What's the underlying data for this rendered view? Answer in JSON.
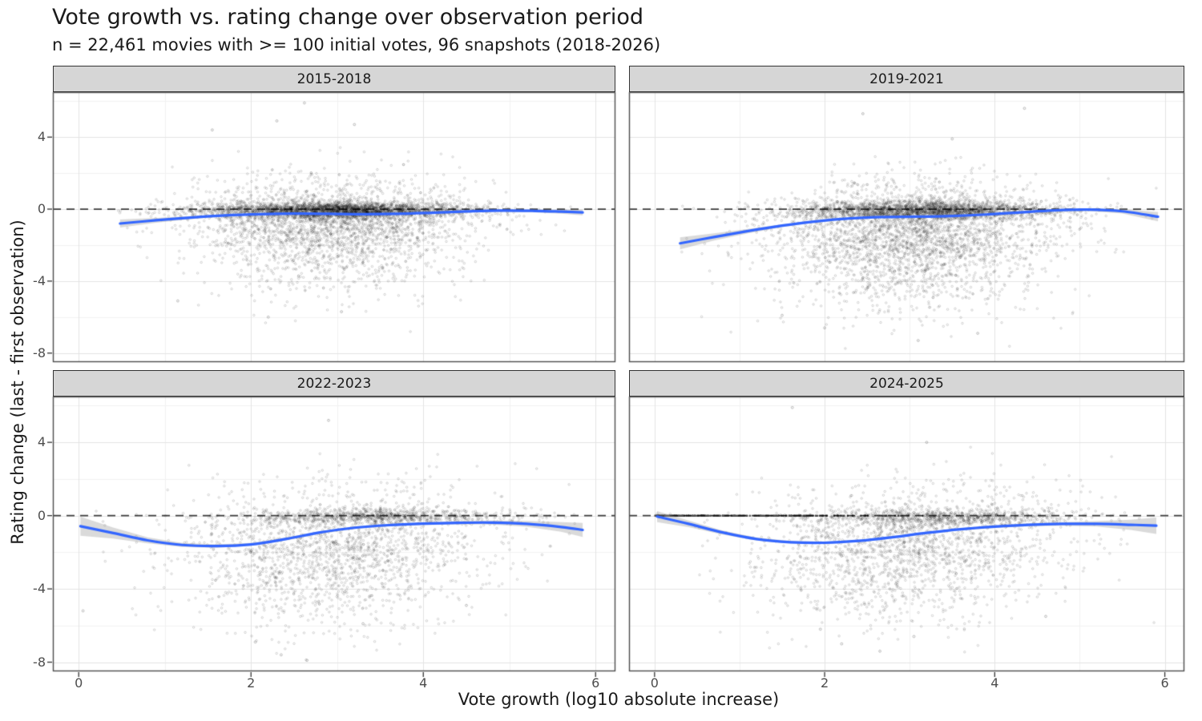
{
  "chart_data": {
    "type": "scatter",
    "title": "Vote growth vs. rating change over observation period",
    "subtitle": "n = 22,461 movies with >= 100 initial votes, 96 snapshots (2018-2026)",
    "xlabel": "Vote growth (log10 absolute increase)",
    "ylabel": "Rating change (last - first observation)",
    "legend": "none",
    "grid": "on",
    "x_axis": {
      "domain": [
        -0.3,
        6.23
      ],
      "major_ticks": [
        0,
        2,
        4,
        6
      ],
      "minor_ticks": [
        1,
        3,
        5
      ],
      "tick_labels": [
        "0",
        "2",
        "4",
        "6"
      ]
    },
    "y_axis": {
      "domain": [
        -8.5,
        6.5
      ],
      "major_ticks": [
        4,
        0,
        -4,
        -8
      ],
      "minor_ticks": [
        6,
        2,
        -2,
        -6
      ],
      "tick_labels": [
        "4",
        "0",
        "-4",
        "-8"
      ]
    },
    "zero_line_y": 0,
    "style": {
      "smooth_line": "#3366FF",
      "ci_band": "#969696",
      "ci_alpha": 0.35,
      "point": "#000000",
      "point_alpha": 0.22,
      "zero_line": "#3C3C3C",
      "grid_major": "#E4E4E4",
      "grid_minor": "#F2F2F2",
      "panel_border": "#4D4D4D",
      "tick_mark": "#333333",
      "strip_fill": "#D6D6D6",
      "strip_border": "#333333",
      "background": "#FFFFFF"
    },
    "facets": [
      {
        "label": "2015-2018",
        "smooth": {
          "x": [
            0.48,
            0.9,
            1.3,
            1.7,
            2.1,
            2.5,
            2.9,
            3.3,
            3.7,
            4.1,
            4.5,
            4.9,
            5.3,
            5.6,
            5.85
          ],
          "y": [
            -0.8,
            -0.62,
            -0.47,
            -0.35,
            -0.28,
            -0.25,
            -0.26,
            -0.28,
            -0.26,
            -0.2,
            -0.13,
            -0.08,
            -0.1,
            -0.14,
            -0.18
          ],
          "ci": [
            0.22,
            0.13,
            0.08,
            0.05,
            0.04,
            0.03,
            0.03,
            0.03,
            0.03,
            0.04,
            0.05,
            0.06,
            0.08,
            0.11,
            0.16
          ]
        },
        "scatter_model": {
          "seed": 101,
          "x_range": [
            0.45,
            5.9
          ],
          "y_range": [
            -7.6,
            6.2
          ],
          "components": [
            {
              "n": 2600,
              "x": [
                3.0,
                0.82
              ],
              "y": [
                -0.07,
                0.22
              ]
            },
            {
              "n": 1500,
              "x": [
                2.95,
                0.8
              ],
              "y": [
                -0.85,
                0.85
              ]
            },
            {
              "n": 650,
              "x": [
                2.9,
                0.75
              ],
              "y": [
                -2.5,
                1.25
              ]
            },
            {
              "n": 420,
              "x": [
                2.85,
                0.8
              ],
              "y": [
                0.6,
                1.05
              ]
            }
          ]
        },
        "outliers": [
          [
            2.62,
            5.9
          ],
          [
            3.2,
            4.7
          ],
          [
            1.55,
            4.4
          ],
          [
            2.3,
            4.9
          ],
          [
            2.2,
            -6.0
          ],
          [
            3.05,
            -5.7
          ],
          [
            1.15,
            -5.1
          ]
        ]
      },
      {
        "label": "2019-2021",
        "smooth": {
          "x": [
            0.3,
            0.7,
            1.1,
            1.5,
            1.9,
            2.3,
            2.7,
            3.1,
            3.5,
            3.9,
            4.3,
            4.7,
            5.1,
            5.5,
            5.92
          ],
          "y": [
            -1.9,
            -1.55,
            -1.22,
            -0.92,
            -0.68,
            -0.52,
            -0.44,
            -0.42,
            -0.38,
            -0.3,
            -0.18,
            -0.07,
            -0.03,
            -0.12,
            -0.42
          ],
          "ci": [
            0.33,
            0.2,
            0.12,
            0.08,
            0.06,
            0.05,
            0.04,
            0.04,
            0.04,
            0.05,
            0.05,
            0.06,
            0.08,
            0.12,
            0.26
          ]
        },
        "scatter_model": {
          "seed": 202,
          "x_range": [
            0.2,
            5.95
          ],
          "y_range": [
            -7.8,
            6.3
          ],
          "components": [
            {
              "n": 2100,
              "x": [
                3.2,
                0.8
              ],
              "y": [
                -0.08,
                0.25
              ]
            },
            {
              "n": 1600,
              "x": [
                3.0,
                0.85
              ],
              "y": [
                -1.3,
                1.0
              ]
            },
            {
              "n": 850,
              "x": [
                2.95,
                0.8
              ],
              "y": [
                -3.3,
                1.35
              ]
            },
            {
              "n": 420,
              "x": [
                3.2,
                0.8
              ],
              "y": [
                0.55,
                0.85
              ]
            }
          ]
        },
        "outliers": [
          [
            2.45,
            5.3
          ],
          [
            4.35,
            5.6
          ],
          [
            3.5,
            3.9
          ],
          [
            2.0,
            -6.6
          ],
          [
            3.1,
            -7.3
          ],
          [
            1.5,
            -5.9
          ],
          [
            3.8,
            -6.9
          ]
        ]
      },
      {
        "label": "2022-2023",
        "smooth": {
          "x": [
            0.02,
            0.4,
            0.8,
            1.2,
            1.6,
            2.0,
            2.4,
            2.8,
            3.2,
            3.6,
            4.0,
            4.4,
            4.8,
            5.2,
            5.6,
            5.85
          ],
          "y": [
            -0.58,
            -0.95,
            -1.35,
            -1.6,
            -1.66,
            -1.57,
            -1.28,
            -0.92,
            -0.66,
            -0.52,
            -0.44,
            -0.39,
            -0.38,
            -0.45,
            -0.62,
            -0.78
          ],
          "ci": [
            0.52,
            0.3,
            0.16,
            0.11,
            0.09,
            0.08,
            0.08,
            0.07,
            0.07,
            0.07,
            0.08,
            0.09,
            0.11,
            0.16,
            0.26,
            0.38
          ]
        },
        "scatter_model": {
          "seed": 303,
          "x_range": [
            0.0,
            5.9
          ],
          "y_range": [
            -8.2,
            6.3
          ],
          "components": [
            {
              "n": 900,
              "x": [
                3.5,
                0.82
              ],
              "y": [
                -0.07,
                0.22
              ]
            },
            {
              "n": 950,
              "x": [
                2.95,
                0.92
              ],
              "y": [
                -1.6,
                1.05
              ]
            },
            {
              "n": 680,
              "x": [
                2.8,
                0.88
              ],
              "y": [
                -3.6,
                1.5
              ]
            },
            {
              "n": 210,
              "x": [
                3.3,
                0.85
              ],
              "y": [
                0.8,
                1.0
              ]
            }
          ]
        },
        "outliers": [
          [
            2.9,
            5.2
          ],
          [
            0.05,
            -5.2
          ],
          [
            2.35,
            -7.6
          ],
          [
            2.05,
            -6.9
          ],
          [
            3.3,
            -5.9
          ],
          [
            2.65,
            -7.9
          ],
          [
            4.5,
            -4.9
          ]
        ]
      },
      {
        "label": "2024-2025",
        "smooth": {
          "x": [
            0.03,
            0.4,
            0.8,
            1.2,
            1.6,
            2.0,
            2.4,
            2.8,
            3.2,
            3.6,
            4.0,
            4.4,
            4.8,
            5.2,
            5.6,
            5.9
          ],
          "y": [
            -0.05,
            -0.45,
            -0.92,
            -1.28,
            -1.45,
            -1.48,
            -1.38,
            -1.18,
            -0.94,
            -0.74,
            -0.6,
            -0.5,
            -0.45,
            -0.45,
            -0.5,
            -0.55
          ],
          "ci": [
            0.3,
            0.18,
            0.11,
            0.08,
            0.07,
            0.06,
            0.06,
            0.06,
            0.06,
            0.06,
            0.07,
            0.08,
            0.1,
            0.15,
            0.28,
            0.45
          ]
        },
        "scatter_model": {
          "seed": 404,
          "x_range": [
            0.0,
            5.95
          ],
          "y_range": [
            -8.2,
            6.3
          ],
          "components": [
            {
              "n": 260,
              "dist": "halfnormal_x",
              "x": [
                0,
                1.25
              ],
              "x_range": [
                0,
                3.3
              ],
              "y_fixed": 0,
              "point_alpha": 0.7,
              "filled": true
            },
            {
              "n": 820,
              "x": [
                3.4,
                0.85
              ],
              "y": [
                -0.1,
                0.25
              ]
            },
            {
              "n": 950,
              "x": [
                2.95,
                0.9
              ],
              "y": [
                -1.5,
                1.05
              ]
            },
            {
              "n": 640,
              "x": [
                2.85,
                0.85
              ],
              "y": [
                -3.4,
                1.45
              ]
            },
            {
              "n": 260,
              "x": [
                3.4,
                0.9
              ],
              "y": [
                0.65,
                0.95
              ]
            }
          ]
        },
        "outliers": [
          [
            1.62,
            5.9
          ],
          [
            3.2,
            4.0
          ],
          [
            2.2,
            -7.0
          ],
          [
            2.65,
            -7.4
          ],
          [
            1.95,
            -6.2
          ],
          [
            4.6,
            -5.5
          ],
          [
            3.05,
            -6.6
          ]
        ]
      }
    ]
  }
}
